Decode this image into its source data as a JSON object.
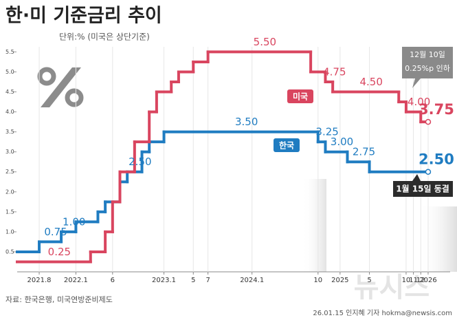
{
  "title": "한·미 기준금리 추이",
  "subtitle": "단위:% (미국은 상단기준)",
  "source": "자료: 한국은행, 미국연방준비제도",
  "credit": "26.01.15 인지혜 기자 hokma@newsis.com",
  "watermark": "뉴시스",
  "chart_data": {
    "type": "step",
    "xlim": [
      "2021-05",
      "2026-04"
    ],
    "ylim": [
      0,
      5.8
    ],
    "yticks": [
      0.5,
      {
        "value": 1,
        "label": "1.0"
      },
      1.5,
      {
        "value": 2,
        "label": "2.0"
      },
      2.5,
      {
        "value": 3,
        "label": "3.0"
      },
      3.5,
      {
        "value": 4,
        "label": "4.0"
      },
      4.5,
      {
        "value": 5,
        "label": "5.0"
      },
      5.5
    ],
    "xticks": [
      {
        "value": "2021-08",
        "label": "2021.8"
      },
      {
        "value": "2022-01",
        "label": "2022.1"
      },
      {
        "value": "2022-06",
        "label": "6"
      },
      {
        "value": "2023-01",
        "label": "2023.1"
      },
      {
        "value": "2023-05",
        "label": "5"
      },
      {
        "value": "2023-07",
        "label": "7"
      },
      {
        "value": "2024-01",
        "label": "2024.1"
      },
      {
        "value": "2024-10",
        "label": "10"
      },
      {
        "value": "2025-01",
        "label": "2025"
      },
      {
        "value": "2025-05",
        "label": "5"
      },
      {
        "value": "2025-10",
        "label": "10"
      },
      {
        "value": "2025-11",
        "label": "11"
      },
      {
        "value": "2025-12",
        "label": "12"
      },
      {
        "value": "2026-01",
        "label": "2026"
      }
    ],
    "grid": "x",
    "series": [
      {
        "name": "한국",
        "color": "#1f7cc1",
        "x": [
          "2021-05",
          "2021-08",
          "2021-11",
          "2022-01",
          "2022-04",
          "2022-05",
          "2022-07",
          "2022-08",
          "2022-10",
          "2022-11",
          "2023-01",
          "2024-10",
          "2024-11",
          "2025-02",
          "2025-05",
          "2026-01"
        ],
        "values": [
          0.5,
          0.75,
          1,
          1.25,
          1.5,
          1.75,
          2.25,
          2.5,
          3,
          3.25,
          3.5,
          3.25,
          3,
          2.75,
          2.5,
          2.5
        ],
        "value_labels": [
          null,
          "0.75",
          "1.00",
          null,
          null,
          null,
          null,
          "2.50",
          null,
          null,
          "3.50",
          "3.25",
          "3.00",
          "2.75",
          null,
          "2.50"
        ]
      },
      {
        "name": "미국",
        "color": "#d9455f",
        "x": [
          "2021-05",
          "2022-03",
          "2022-05",
          "2022-06",
          "2022-07",
          "2022-09",
          "2022-11",
          "2022-12",
          "2023-02",
          "2023-03",
          "2023-05",
          "2023-07",
          "2024-09",
          "2024-11",
          "2024-12",
          "2025-09",
          "2025-10",
          "2025-12",
          "2026-01"
        ],
        "values": [
          0.25,
          0.5,
          1,
          1.75,
          2.5,
          3.25,
          4,
          4.5,
          4.75,
          5,
          5.25,
          5.5,
          5,
          4.75,
          4.5,
          4.25,
          4,
          3.75,
          3.75
        ],
        "value_labels": [
          "0.25",
          null,
          null,
          null,
          null,
          null,
          null,
          null,
          null,
          null,
          null,
          "5.50",
          null,
          "4.75",
          "4.50",
          null,
          "4.00",
          null,
          "3.75"
        ]
      }
    ],
    "annotations": [
      {
        "lines": [
          "12월 10일",
          "0.25%p 인하"
        ]
      },
      {
        "lines": [
          "1월 15일 동결"
        ]
      }
    ]
  }
}
